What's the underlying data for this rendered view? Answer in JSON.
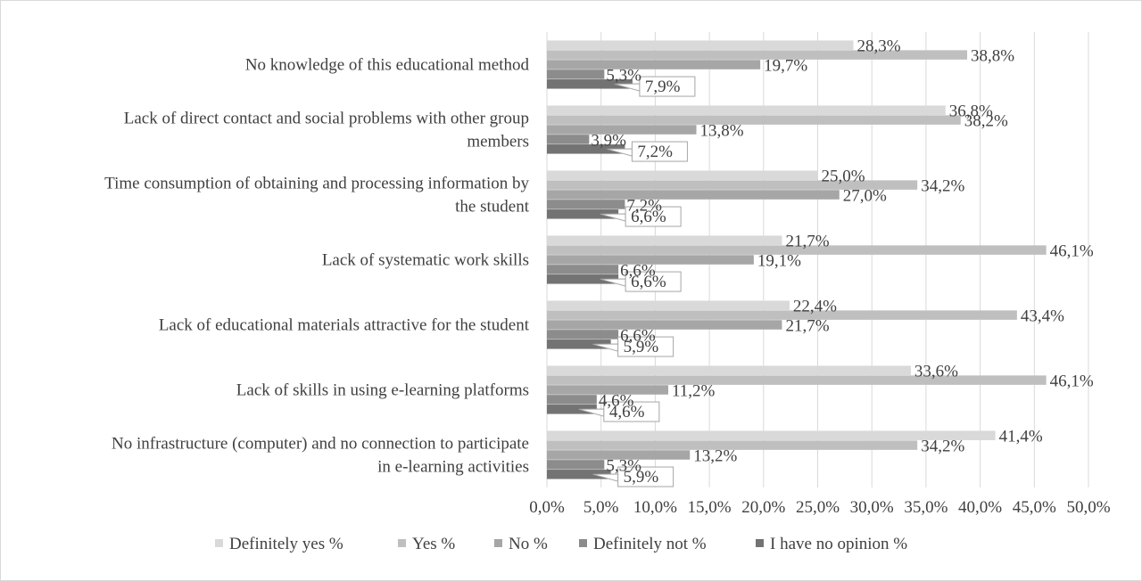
{
  "chart_data": {
    "type": "bar",
    "orientation": "horizontal",
    "categories": [
      "No infrastructure (computer) and no connection to participate in e-learning activities",
      "Lack of skills in using e-learning platforms",
      "Lack of educational materials attractive for the student",
      "Lack of systematic work skills",
      "Time consumption of obtaining and processing information by the student",
      "Lack of direct contact and social problems with other group members",
      "No knowledge of this educational method"
    ],
    "category_lines": [
      [
        "No infrastructure (computer) and no connection to participate",
        "in e-learning activities"
      ],
      [
        "Lack of skills in using e-learning platforms"
      ],
      [
        "Lack of educational materials attractive for the student"
      ],
      [
        "Lack of systematic work skills"
      ],
      [
        "Time consumption of obtaining and processing information by",
        "the student"
      ],
      [
        "Lack of direct contact and social problems with other group",
        "members"
      ],
      [
        "No knowledge of this educational method"
      ]
    ],
    "series": [
      {
        "name": "Definitely yes %",
        "color": "#d9d9d9",
        "values": [
          41.4,
          33.6,
          22.4,
          21.7,
          25.0,
          36.8,
          28.3
        ],
        "labels": [
          "41,4%",
          "33,6%",
          "22,4%",
          "21,7%",
          "25,0%",
          "36,8%",
          "28,3%"
        ]
      },
      {
        "name": "Yes %",
        "color": "#bfbfbf",
        "values": [
          34.2,
          46.1,
          43.4,
          46.1,
          34.2,
          38.2,
          38.8
        ],
        "labels": [
          "34,2%",
          "46,1%",
          "43,4%",
          "46,1%",
          "34,2%",
          "38,2%",
          "38,8%"
        ]
      },
      {
        "name": "No %",
        "color": "#a6a6a6",
        "values": [
          13.2,
          11.2,
          21.7,
          19.1,
          27.0,
          13.8,
          19.7
        ],
        "labels": [
          "13,2%",
          "11,2%",
          "21,7%",
          "19,1%",
          "27,0%",
          "13,8%",
          "19,7%"
        ]
      },
      {
        "name": "Definitely not %",
        "color": "#8c8c8c",
        "values": [
          5.3,
          4.6,
          6.6,
          6.6,
          7.2,
          3.9,
          5.3
        ],
        "labels": [
          "5,3%",
          "4,6%",
          "6,6%",
          "6,6%",
          "7,2%",
          "3,9%",
          "5,3%"
        ]
      },
      {
        "name": "I have no opinion %",
        "color": "#737373",
        "values": [
          5.9,
          4.6,
          5.9,
          6.6,
          6.6,
          7.2,
          7.9
        ],
        "labels": [
          "5,9%",
          "4,6%",
          "5,9%",
          "6,6%",
          "6,6%",
          "7,2%",
          "7,9%"
        ]
      }
    ],
    "x_ticks": [
      "0,0%",
      "5,0%",
      "10,0%",
      "15,0%",
      "20,0%",
      "25,0%",
      "30,0%",
      "35,0%",
      "40,0%",
      "45,0%",
      "50,0%"
    ],
    "xlim": [
      0,
      50
    ],
    "grid": true,
    "legend": "bottom",
    "title": "",
    "xlabel": "",
    "ylabel": ""
  }
}
